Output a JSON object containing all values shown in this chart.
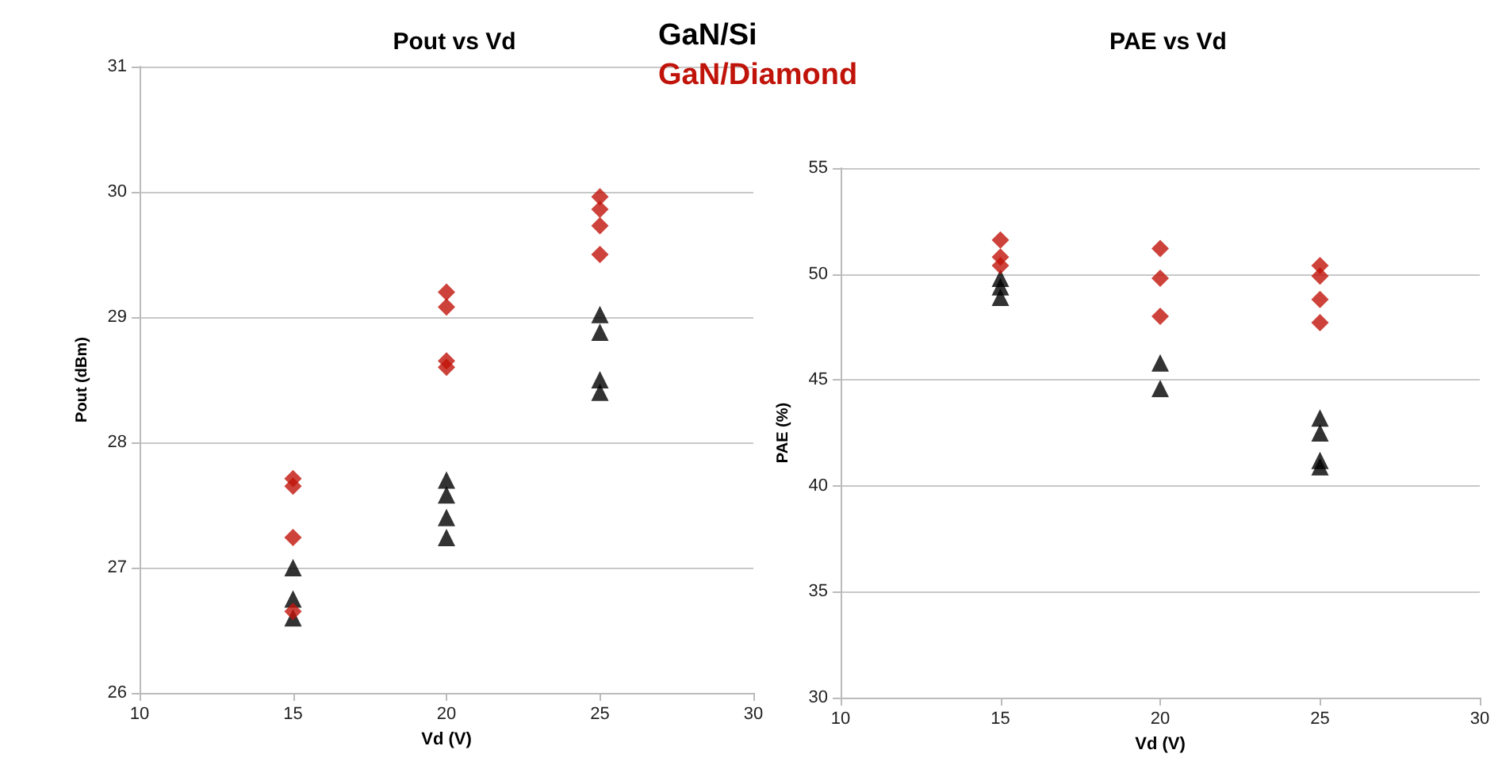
{
  "chart_data": [
    {
      "type": "scatter",
      "title": "Pout vs Vd",
      "xlabel": "Vd (V)",
      "ylabel": "Pout (dBm)",
      "xlim": [
        10,
        30
      ],
      "xticks": [
        10,
        15,
        20,
        25,
        30
      ],
      "ylim": [
        26,
        31
      ],
      "yticks": [
        26,
        27,
        28,
        29,
        30,
        31
      ],
      "grid": "y",
      "legend": "top right",
      "series": [
        {
          "name": "GaN/Si",
          "color": "#000000",
          "marker": "triangle",
          "x": [
            15,
            15,
            15,
            20,
            20,
            20,
            20,
            25,
            25,
            25,
            25
          ],
          "values": [
            27.0,
            26.75,
            26.6,
            27.7,
            27.58,
            27.4,
            27.24,
            29.02,
            28.88,
            28.5,
            28.4
          ]
        },
        {
          "name": "GaN/Diamond",
          "color": "#c0140a",
          "marker": "diamond",
          "x": [
            15,
            15,
            15,
            15,
            20,
            20,
            20,
            20,
            25,
            25,
            25,
            25
          ],
          "values": [
            27.71,
            27.65,
            27.24,
            26.65,
            29.2,
            29.08,
            28.65,
            28.6,
            29.96,
            29.86,
            29.73,
            29.5
          ]
        }
      ]
    },
    {
      "type": "scatter",
      "title": "PAE vs Vd",
      "xlabel": "Vd (V)",
      "ylabel": "PAE (%)",
      "xlim": [
        10,
        30
      ],
      "xticks": [
        10,
        15,
        20,
        25,
        30
      ],
      "ylim": [
        30,
        55
      ],
      "yticks": [
        30,
        35,
        40,
        45,
        50,
        55
      ],
      "grid": "y",
      "series": [
        {
          "color": "#000000",
          "marker": "triangle",
          "x": [
            15,
            15,
            15,
            20,
            20,
            25,
            25,
            25,
            25
          ],
          "values": [
            49.8,
            49.4,
            48.9,
            45.8,
            44.6,
            43.2,
            42.5,
            41.2,
            40.9
          ]
        },
        {
          "color": "#c0140a",
          "marker": "diamond",
          "x": [
            15,
            15,
            15,
            20,
            20,
            20,
            25,
            25,
            25,
            25
          ],
          "values": [
            51.6,
            50.8,
            50.4,
            51.2,
            49.8,
            48.0,
            50.4,
            49.9,
            48.8,
            47.7
          ]
        }
      ]
    }
  ]
}
